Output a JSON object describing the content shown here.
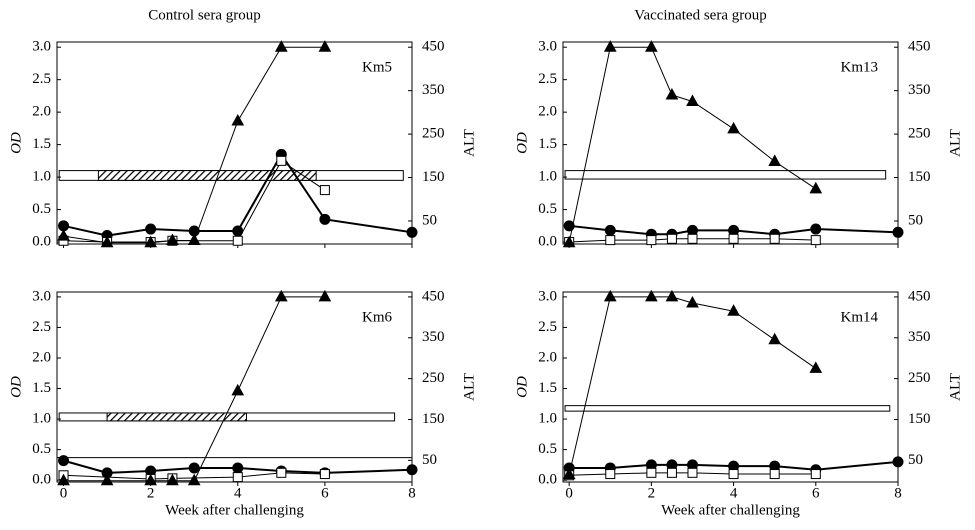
{
  "chart_data": [
    {
      "type": "line",
      "title": "Control sera group",
      "label": "Km5",
      "ylabel": "OD",
      "y2label": "ALT",
      "xlim": [
        -0.15,
        8.0
      ],
      "xticks": [
        0,
        2,
        4,
        6,
        8
      ],
      "xtick_labels": false,
      "ylim": [
        -0.03,
        3.08
      ],
      "yticks": [
        {
          "value": 0,
          "label": "0.0"
        },
        0.5,
        {
          "value": 1,
          "label": "1.0"
        },
        1.5,
        {
          "value": 2,
          "label": "2.0"
        },
        2.5,
        {
          "value": 3,
          "label": "3.0"
        }
      ],
      "y2lim": [
        -3,
        462
      ],
      "y2ticks": [
        50,
        150,
        250,
        350,
        450
      ],
      "band": {
        "x": [
          -0.1,
          7.8
        ],
        "y": [
          0.95,
          1.1
        ]
      },
      "hatch": {
        "x": [
          0.8,
          5.8
        ]
      },
      "series": [
        {
          "marker": "circle",
          "color": "#000000",
          "x": [
            0,
            1,
            2,
            3,
            4,
            5,
            6,
            8
          ],
          "values": [
            0.25,
            0.1,
            0.2,
            0.17,
            0.17,
            1.35,
            0.35,
            0.15
          ]
        },
        {
          "marker": "square",
          "color": "#000000",
          "x": [
            0,
            1,
            2,
            2.5,
            4,
            5,
            6
          ],
          "values": [
            0.02,
            0,
            0,
            0.02,
            0.02,
            1.25,
            0.8
          ]
        },
        {
          "marker": "triangle",
          "color": "#000000",
          "axis": "y2",
          "x": [
            0,
            1,
            2,
            2.5,
            3,
            4,
            5,
            6
          ],
          "values": [
            15,
            0,
            0,
            5,
            5,
            280,
            450,
            450
          ]
        }
      ]
    },
    {
      "type": "line",
      "title": "Vaccinated  sera group",
      "label": "Km13",
      "ylabel": "OD",
      "y2label": "ALT",
      "xlim": [
        -0.15,
        8.0
      ],
      "xticks": [
        0,
        2,
        4,
        6,
        8
      ],
      "xtick_labels": false,
      "ylim": [
        -0.03,
        3.08
      ],
      "yticks": [
        {
          "value": 0,
          "label": "0.0"
        },
        0.5,
        {
          "value": 1,
          "label": "1.0"
        },
        1.5,
        {
          "value": 2,
          "label": "2.0"
        },
        2.5,
        {
          "value": 3,
          "label": "3.0"
        }
      ],
      "y2lim": [
        -3,
        462
      ],
      "y2ticks": [
        50,
        150,
        250,
        350,
        450
      ],
      "band": {
        "x": [
          -0.1,
          7.7
        ],
        "y": [
          0.97,
          1.1
        ]
      },
      "series": [
        {
          "marker": "circle",
          "color": "#000000",
          "x": [
            0,
            1,
            2,
            2.5,
            3,
            4,
            5,
            6,
            8
          ],
          "values": [
            0.25,
            0.18,
            0.12,
            0.12,
            0.18,
            0.18,
            0.12,
            0.2,
            0.15
          ]
        },
        {
          "marker": "square",
          "color": "#000000",
          "x": [
            0,
            1,
            2,
            2.5,
            3,
            4,
            5,
            6
          ],
          "values": [
            0,
            0.03,
            0.03,
            0.05,
            0.05,
            0.05,
            0.05,
            0.03
          ]
        },
        {
          "marker": "triangle",
          "color": "#000000",
          "axis": "y2",
          "x": [
            0,
            1,
            2,
            2.5,
            3,
            4,
            5,
            6
          ],
          "values": [
            0,
            450,
            450,
            340,
            325,
            262,
            187,
            124
          ]
        }
      ]
    },
    {
      "type": "line",
      "label": "Km6",
      "ylabel": "OD",
      "y2label": "ALT",
      "xlabel": "Week after challenging",
      "xlim": [
        -0.15,
        8.0
      ],
      "xticks": [
        0,
        2,
        4,
        6,
        8
      ],
      "xtick_labels": true,
      "ylim": [
        -0.03,
        3.08
      ],
      "yticks": [
        {
          "value": 0,
          "label": "0.0"
        },
        0.5,
        {
          "value": 1,
          "label": "1.0"
        },
        1.5,
        {
          "value": 2,
          "label": "2.0"
        },
        2.5,
        {
          "value": 3,
          "label": "3.0"
        }
      ],
      "y2lim": [
        -3,
        462
      ],
      "y2ticks": [
        50,
        150,
        250,
        350,
        450
      ],
      "band": {
        "x": [
          -0.1,
          7.6
        ],
        "y": [
          0.97,
          1.1
        ]
      },
      "hatch": {
        "x": [
          1.0,
          4.2
        ]
      },
      "hline": 0.37,
      "series": [
        {
          "marker": "circle",
          "color": "#000000",
          "x": [
            0,
            1,
            2,
            3,
            4,
            5,
            6,
            8
          ],
          "values": [
            0.32,
            0.12,
            0.15,
            0.2,
            0.2,
            0.15,
            0.12,
            0.17
          ]
        },
        {
          "marker": "square",
          "color": "#000000",
          "x": [
            0,
            2,
            2.5,
            4,
            5,
            6
          ],
          "values": [
            0.08,
            0.02,
            0.03,
            0.05,
            0.12,
            0.1
          ]
        },
        {
          "marker": "triangle",
          "color": "#000000",
          "axis": "y2",
          "x": [
            0,
            1,
            2,
            2.5,
            3,
            4,
            5,
            6
          ],
          "values": [
            0,
            0,
            0,
            0,
            0,
            220,
            450,
            450
          ]
        }
      ]
    },
    {
      "type": "line",
      "label": "Km14",
      "ylabel": "OD",
      "y2label": "ALT",
      "xlabel": "Week after challenging",
      "xlim": [
        -0.15,
        8.0
      ],
      "xticks": [
        0,
        2,
        4,
        6,
        8
      ],
      "xtick_labels": true,
      "ylim": [
        -0.03,
        3.08
      ],
      "yticks": [
        {
          "value": 0,
          "label": "0.0"
        },
        0.5,
        {
          "value": 1,
          "label": "1.0"
        },
        1.5,
        {
          "value": 2,
          "label": "2.0"
        },
        2.5,
        {
          "value": 3,
          "label": "3.0"
        }
      ],
      "y2lim": [
        -3,
        462
      ],
      "y2ticks": [
        50,
        150,
        250,
        350,
        450
      ],
      "band": {
        "x": [
          -0.1,
          7.8
        ],
        "y": [
          1.13,
          1.22
        ]
      },
      "series": [
        {
          "marker": "circle",
          "color": "#000000",
          "x": [
            0,
            1,
            2,
            2.5,
            3,
            4,
            5,
            6,
            8
          ],
          "values": [
            0.2,
            0.2,
            0.25,
            0.25,
            0.25,
            0.23,
            0.23,
            0.17,
            0.3
          ]
        },
        {
          "marker": "square",
          "color": "#000000",
          "x": [
            0,
            1,
            2,
            2.5,
            3,
            4,
            5,
            6
          ],
          "values": [
            0.08,
            0.1,
            0.12,
            0.12,
            0.12,
            0.1,
            0.1,
            0.1
          ]
        },
        {
          "marker": "triangle",
          "color": "#000000",
          "axis": "y2",
          "x": [
            0,
            1,
            2,
            2.5,
            3,
            4,
            5,
            6
          ],
          "values": [
            15,
            450,
            450,
            450,
            435,
            415,
            345,
            275
          ]
        }
      ]
    }
  ]
}
